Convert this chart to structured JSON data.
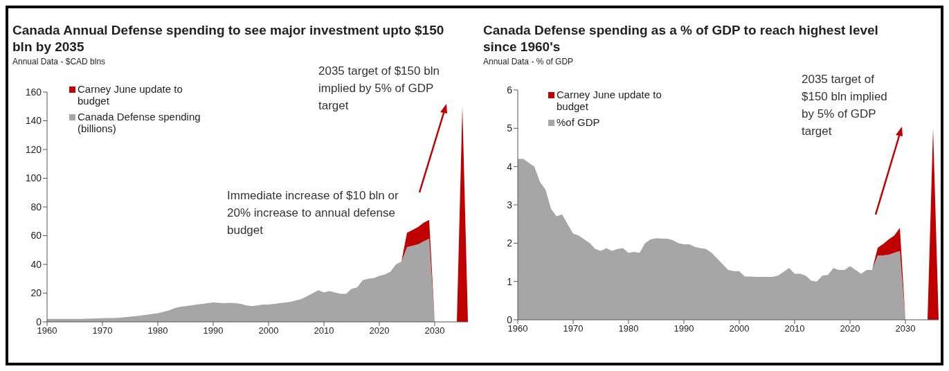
{
  "chart_data": [
    {
      "type": "area",
      "stacked": true,
      "title": "Canada Annual Defense spending to see major investment upto $150 bln by 2035",
      "subtitle": "Annual Data - $CAD blns",
      "x": [
        1960,
        1961,
        1962,
        1963,
        1964,
        1965,
        1966,
        1967,
        1968,
        1969,
        1970,
        1971,
        1972,
        1973,
        1974,
        1975,
        1976,
        1977,
        1978,
        1979,
        1980,
        1981,
        1982,
        1983,
        1984,
        1985,
        1986,
        1987,
        1988,
        1989,
        1990,
        1991,
        1992,
        1993,
        1994,
        1995,
        1996,
        1997,
        1998,
        1999,
        2000,
        2001,
        2002,
        2003,
        2004,
        2005,
        2006,
        2007,
        2008,
        2009,
        2010,
        2011,
        2012,
        2013,
        2014,
        2015,
        2016,
        2017,
        2018,
        2019,
        2020,
        2021,
        2022,
        2023,
        2024,
        2025,
        2026,
        2027,
        2028,
        2029,
        2030,
        2031,
        2032,
        2033,
        2034,
        2035,
        2036
      ],
      "series": [
        {
          "name": "Canada Defense spending (billions)",
          "color": "#a6a6a6",
          "values": [
            2,
            2,
            2,
            2,
            2,
            2,
            2,
            2.2,
            2.3,
            2.4,
            2.5,
            2.6,
            2.7,
            2.9,
            3.2,
            3.6,
            4,
            4.5,
            5,
            5.5,
            6,
            7,
            8,
            9.5,
            10.5,
            11,
            11.5,
            12,
            12.5,
            13,
            13.5,
            13.2,
            13,
            13.2,
            13,
            12.5,
            11.5,
            11,
            11.5,
            12,
            12,
            12.5,
            13,
            13.5,
            14,
            15,
            16,
            18,
            20,
            22,
            20.5,
            21.5,
            20.5,
            19.5,
            19.5,
            23,
            24,
            29,
            30,
            30.5,
            32,
            33,
            35,
            40,
            42,
            52,
            53,
            54,
            56,
            58,
            0,
            0,
            0,
            0,
            0,
            0,
            0
          ]
        },
        {
          "name": "Carney June update to budget",
          "color": "#c00000",
          "values": [
            0,
            0,
            0,
            0,
            0,
            0,
            0,
            0,
            0,
            0,
            0,
            0,
            0,
            0,
            0,
            0,
            0,
            0,
            0,
            0,
            0,
            0,
            0,
            0,
            0,
            0,
            0,
            0,
            0,
            0,
            0,
            0,
            0,
            0,
            0,
            0,
            0,
            0,
            0,
            0,
            0,
            0,
            0,
            0,
            0,
            0,
            0,
            0,
            0,
            0,
            0,
            0,
            0,
            0,
            0,
            0,
            0,
            0,
            0,
            0,
            0,
            0,
            0,
            0,
            0,
            10,
            11,
            12,
            13,
            13,
            0,
            0,
            0,
            0,
            0,
            150,
            0
          ]
        }
      ],
      "xlim": [
        1960,
        2036
      ],
      "xticks": [
        1960,
        1970,
        1980,
        1990,
        2000,
        2010,
        2020,
        2030
      ],
      "ylim": [
        0,
        160
      ],
      "yticks": [
        0,
        20,
        40,
        60,
        80,
        100,
        120,
        140,
        160
      ],
      "grid": false,
      "legend": "top left",
      "annotations": [
        "2035 target of $150 bln implied by 5% of GDP target",
        "Immediate increase of $10 bln or 20% increase to annual defense budget"
      ]
    },
    {
      "type": "area",
      "stacked": true,
      "title": "Canada Defense spending as a % of GDP to reach highest level since 1960's",
      "subtitle": "Annual Data - % of GDP",
      "x": [
        1960,
        1961,
        1962,
        1963,
        1964,
        1965,
        1966,
        1967,
        1968,
        1969,
        1970,
        1971,
        1972,
        1973,
        1974,
        1975,
        1976,
        1977,
        1978,
        1979,
        1980,
        1981,
        1982,
        1983,
        1984,
        1985,
        1986,
        1987,
        1988,
        1989,
        1990,
        1991,
        1992,
        1993,
        1994,
        1995,
        1996,
        1997,
        1998,
        1999,
        2000,
        2001,
        2002,
        2003,
        2004,
        2005,
        2006,
        2007,
        2008,
        2009,
        2010,
        2011,
        2012,
        2013,
        2014,
        2015,
        2016,
        2017,
        2018,
        2019,
        2020,
        2021,
        2022,
        2023,
        2024,
        2025,
        2026,
        2027,
        2028,
        2029,
        2030,
        2031,
        2032,
        2033,
        2034,
        2035,
        2036
      ],
      "series": [
        {
          "name": "%of GDP",
          "color": "#a6a6a6",
          "values": [
            4.2,
            4.2,
            4.1,
            4.0,
            3.6,
            3.4,
            2.9,
            2.7,
            2.75,
            2.5,
            2.25,
            2.2,
            2.1,
            2.0,
            1.85,
            1.8,
            1.87,
            1.8,
            1.85,
            1.87,
            1.75,
            1.77,
            1.75,
            2.0,
            2.1,
            2.13,
            2.12,
            2.12,
            2.08,
            2.0,
            1.97,
            1.97,
            1.9,
            1.87,
            1.85,
            1.75,
            1.6,
            1.45,
            1.3,
            1.27,
            1.27,
            1.13,
            1.13,
            1.12,
            1.12,
            1.12,
            1.12,
            1.15,
            1.25,
            1.35,
            1.2,
            1.2,
            1.15,
            1.02,
            1.0,
            1.15,
            1.17,
            1.35,
            1.3,
            1.3,
            1.4,
            1.3,
            1.2,
            1.3,
            1.3,
            1.68,
            1.68,
            1.7,
            1.75,
            1.8,
            0,
            0,
            0,
            0,
            0,
            0,
            0
          ]
        },
        {
          "name": "Carney June update to budget",
          "color": "#c00000",
          "values": [
            0,
            0,
            0,
            0,
            0,
            0,
            0,
            0,
            0,
            0,
            0,
            0,
            0,
            0,
            0,
            0,
            0,
            0,
            0,
            0,
            0,
            0,
            0,
            0,
            0,
            0,
            0,
            0,
            0,
            0,
            0,
            0,
            0,
            0,
            0,
            0,
            0,
            0,
            0,
            0,
            0,
            0,
            0,
            0,
            0,
            0,
            0,
            0,
            0,
            0,
            0,
            0,
            0,
            0,
            0,
            0,
            0,
            0,
            0,
            0,
            0,
            0,
            0,
            0,
            0,
            0.2,
            0.3,
            0.4,
            0.45,
            0.6,
            0,
            0,
            0,
            0,
            0,
            5,
            0
          ]
        }
      ],
      "xlim": [
        1960,
        2036
      ],
      "xticks": [
        1960,
        1970,
        1980,
        1990,
        2000,
        2010,
        2020,
        2030
      ],
      "ylim": [
        0,
        6
      ],
      "yticks": [
        0,
        1,
        2,
        3,
        4,
        5,
        6
      ],
      "grid": false,
      "legend": "top left",
      "annotations": [
        "2035 target of $150 bln implied by 5% of GDP target"
      ]
    }
  ]
}
